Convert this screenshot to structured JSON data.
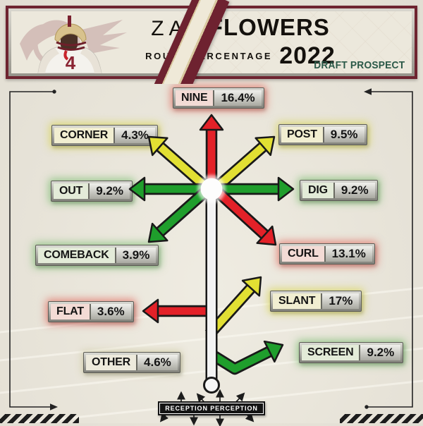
{
  "header": {
    "title_first": "ZAY",
    "title_last": "FLOWERS",
    "subtitle": "ROUTE PERCENTAGE",
    "year": "2022",
    "badge": "DRAFT PROSPECT"
  },
  "footer": {
    "brand": "RECEPTION PERCEPTION"
  },
  "chart_data": {
    "type": "route-tree",
    "title": "Zay Flowers Route Percentage 2022",
    "routes": [
      {
        "name": "NINE",
        "value": "16.4%",
        "color": "red"
      },
      {
        "name": "CORNER",
        "value": "4.3%",
        "color": "yellow"
      },
      {
        "name": "POST",
        "value": "9.5%",
        "color": "yellow"
      },
      {
        "name": "OUT",
        "value": "9.2%",
        "color": "green"
      },
      {
        "name": "DIG",
        "value": "9.2%",
        "color": "green"
      },
      {
        "name": "COMEBACK",
        "value": "3.9%",
        "color": "green"
      },
      {
        "name": "CURL",
        "value": "13.1%",
        "color": "red"
      },
      {
        "name": "FLAT",
        "value": "3.6%",
        "color": "red"
      },
      {
        "name": "SLANT",
        "value": "17%",
        "color": "yellow"
      },
      {
        "name": "SCREEN",
        "value": "9.2%",
        "color": "green"
      },
      {
        "name": "OTHER",
        "value": "4.6%",
        "color": "neutral"
      }
    ],
    "palette": {
      "red": "#e32128",
      "yellow": "#e2df33",
      "green": "#1f9e2c",
      "neutral": "#d9d6c6",
      "trunk": "#f3f3f3",
      "outline": "#191919"
    }
  }
}
